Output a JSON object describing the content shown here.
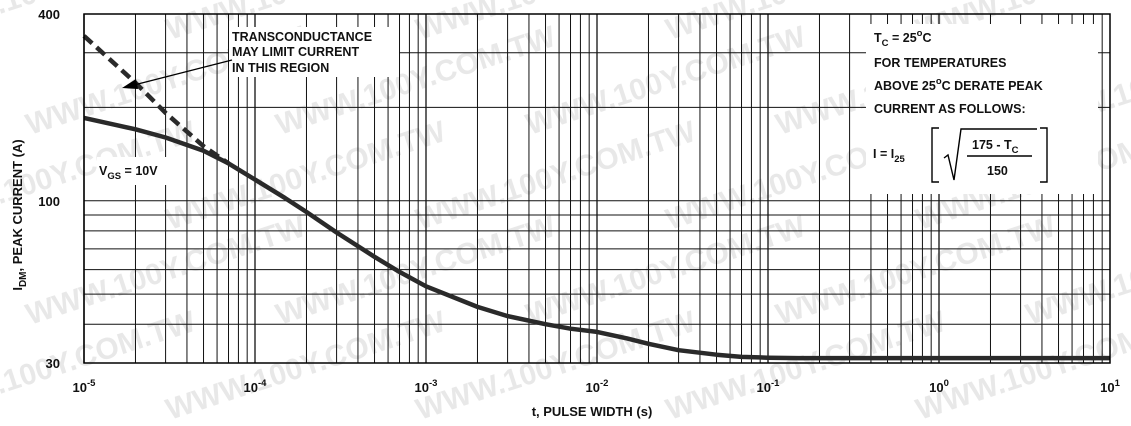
{
  "chart_data": {
    "type": "line",
    "title": "",
    "xlabel": "t, PULSE WIDTH (s)",
    "ylabel": {
      "main": "I",
      "sub": "DM",
      "rest": ", PEAK CURRENT (A)"
    },
    "x_scale": "log",
    "y_scale": "log",
    "xlim": [
      1e-05,
      10
    ],
    "ylim": [
      30,
      400
    ],
    "grid": true,
    "x_ticks": [
      {
        "base": "10",
        "exp": "-5",
        "value": 1e-05
      },
      {
        "base": "10",
        "exp": "-4",
        "value": 0.0001
      },
      {
        "base": "10",
        "exp": "-3",
        "value": 0.001
      },
      {
        "base": "10",
        "exp": "-2",
        "value": 0.01
      },
      {
        "base": "10",
        "exp": "-1",
        "value": 0.1
      },
      {
        "base": "10",
        "exp": "0",
        "value": 1
      },
      {
        "base": "10",
        "exp": "1",
        "value": 10
      }
    ],
    "y_ticks": [
      {
        "label": "400",
        "value": 400
      },
      {
        "label": "100",
        "value": 100
      },
      {
        "label": "30",
        "value": 30
      }
    ],
    "series": [
      {
        "name": "",
        "style": "solid",
        "x": [
          1e-05,
          2e-05,
          3e-05,
          5e-05,
          7e-05,
          0.0001,
          0.00015,
          0.0002,
          0.0003,
          0.0005,
          0.0007,
          0.001,
          0.002,
          0.003,
          0.005,
          0.007,
          0.01,
          0.015,
          0.02,
          0.03,
          0.05,
          0.07,
          0.1,
          0.15,
          0.2,
          0.5,
          1,
          2,
          5,
          10
        ],
        "y": [
          185,
          170,
          160,
          145,
          132,
          117,
          102,
          92,
          79,
          66,
          59,
          53,
          45.5,
          42.5,
          40,
          38.7,
          37.8,
          36,
          34.6,
          33,
          31.9,
          31.4,
          31.2,
          31.1,
          31.1,
          31.1,
          31.1,
          31.1,
          31.1,
          31.1
        ]
      },
      {
        "name": "",
        "style": "dashed",
        "x": [
          1e-05,
          2e-05,
          3e-05,
          5e-05,
          7e-05
        ],
        "y": [
          340,
          240,
          192,
          150,
          132
        ]
      }
    ],
    "annotations": {
      "vgs": {
        "main": "V",
        "sub": "GS",
        "rest": " = 10V"
      },
      "transconductance": [
        "TRANSCONDUCTANCE",
        "MAY LIMIT CURRENT",
        "IN THIS REGION"
      ],
      "tc": {
        "main": "T",
        "sub": "C",
        "rest": " = 25",
        "sup": "o",
        "end": "C"
      },
      "derate_line1": "FOR TEMPERATURES",
      "derate_line2": {
        "pre": "ABOVE 25",
        "sup": "o",
        "post": "C DERATE PEAK"
      },
      "derate_line3": "CURRENT AS FOLLOWS:",
      "formula": {
        "lhs_main": "I = I",
        "lhs_sub": "25",
        "num_pre": "175 - T",
        "num_sub": "C",
        "den": "150"
      }
    },
    "watermark": "WWW.100Y.COM.TW"
  },
  "colors": {
    "curve": "#2a2a2a",
    "grid": "#111111",
    "frame": "#000000",
    "background": "#ffffff"
  }
}
